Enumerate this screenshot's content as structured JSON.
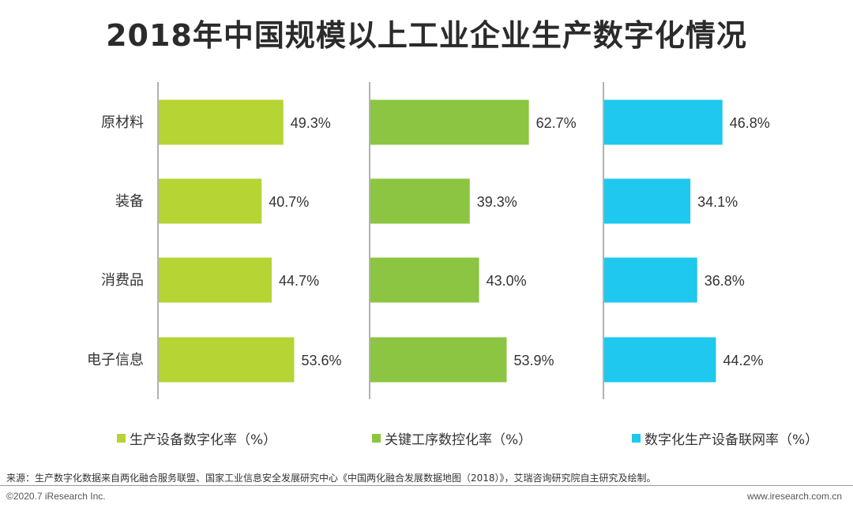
{
  "title": "2018年中国规模以上工业企业生产数字化情况",
  "chart_data": {
    "type": "bar",
    "orientation": "horizontal",
    "categories": [
      "原材料",
      "装备",
      "消费品",
      "电子信息"
    ],
    "series": [
      {
        "name": "生产设备数字化率（%）",
        "values": [
          49.3,
          40.7,
          44.7,
          53.6
        ],
        "color": "#b6d433"
      },
      {
        "name": "关键工序数控化率（%）",
        "values": [
          62.7,
          39.3,
          43.0,
          53.9
        ],
        "color": "#8cc541"
      },
      {
        "name": "数字化生产设备联网率（%）",
        "values": [
          46.8,
          34.1,
          36.8,
          44.2
        ],
        "color": "#1ec8ee"
      }
    ],
    "data_labels": [
      [
        "49.3%",
        "40.7%",
        "44.7%",
        "53.6%"
      ],
      [
        "62.7%",
        "39.3%",
        "43.0%",
        "53.9%"
      ],
      [
        "46.8%",
        "34.1%",
        "36.8%",
        "44.2%"
      ]
    ],
    "value_unit": "%",
    "grid": false,
    "legend_position": "bottom"
  },
  "footer": {
    "source": "来源：生产数字化数据来自两化融合服务联盟、国家工业信息安全发展研究中心《中国两化融合发展数据地图（2018）》，艾瑞咨询研究院自主研究及绘制。",
    "copyright": "©2020.7 iResearch Inc.",
    "website": "www.iresearch.com.cn"
  }
}
